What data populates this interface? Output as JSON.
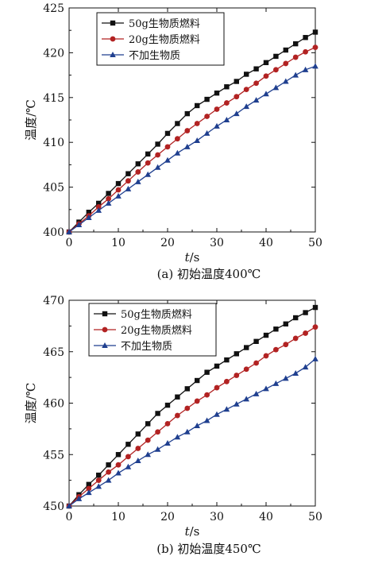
{
  "chart_data": [
    {
      "type": "line",
      "caption": "(a) 初始温度400℃",
      "ylabel": "温度/℃",
      "xlabel_italic": "t",
      "xlabel_rest": "/s",
      "xlim": [
        0,
        50
      ],
      "ylim": [
        400,
        425
      ],
      "xticks": [
        0,
        10,
        20,
        30,
        40,
        50
      ],
      "yticks": [
        400,
        405,
        410,
        415,
        420,
        425
      ],
      "legend_position": "top-left",
      "x": [
        0,
        2,
        4,
        6,
        8,
        10,
        12,
        14,
        16,
        18,
        20,
        22,
        24,
        26,
        28,
        30,
        32,
        34,
        36,
        38,
        40,
        42,
        44,
        46,
        48,
        50
      ],
      "series": [
        {
          "name": "50g生物质燃料",
          "marker": "square",
          "color": "#111111",
          "values": [
            400,
            401.1,
            402.2,
            403.2,
            404.3,
            405.4,
            406.5,
            407.6,
            408.7,
            409.8,
            411.0,
            412.1,
            413.2,
            414.1,
            414.8,
            415.5,
            416.2,
            416.8,
            417.6,
            418.2,
            418.9,
            419.6,
            420.3,
            421.0,
            421.7,
            422.3
          ]
        },
        {
          "name": "20g生物质燃料",
          "marker": "circle",
          "color": "#b22222",
          "values": [
            400,
            400.9,
            401.8,
            402.8,
            403.7,
            404.7,
            405.7,
            406.7,
            407.7,
            408.6,
            409.5,
            410.4,
            411.3,
            412.1,
            412.9,
            413.7,
            414.4,
            415.1,
            415.9,
            416.6,
            417.4,
            418.1,
            418.8,
            419.5,
            420.1,
            420.6
          ]
        },
        {
          "name": "不加生物质",
          "marker": "triangle",
          "color": "#1f3f8f",
          "values": [
            400,
            400.8,
            401.6,
            402.4,
            403.2,
            404.0,
            404.8,
            405.6,
            406.4,
            407.2,
            408.0,
            408.8,
            409.5,
            410.2,
            411.0,
            411.8,
            412.5,
            413.2,
            414.0,
            414.7,
            415.4,
            416.1,
            416.8,
            417.5,
            418.1,
            418.5
          ]
        }
      ]
    },
    {
      "type": "line",
      "caption": "(b) 初始温度450℃",
      "ylabel": "温度/℃",
      "xlabel_italic": "t",
      "xlabel_rest": "/s",
      "xlim": [
        0,
        50
      ],
      "ylim": [
        450,
        470
      ],
      "xticks": [
        0,
        10,
        20,
        30,
        40,
        50
      ],
      "yticks": [
        450,
        455,
        460,
        465,
        470
      ],
      "legend_position": "top-left",
      "x": [
        0,
        2,
        4,
        6,
        8,
        10,
        12,
        14,
        16,
        18,
        20,
        22,
        24,
        26,
        28,
        30,
        32,
        34,
        36,
        38,
        40,
        42,
        44,
        46,
        48,
        50
      ],
      "series": [
        {
          "name": "50g生物质燃料",
          "marker": "square",
          "color": "#111111",
          "values": [
            450,
            451.1,
            452.1,
            453.0,
            454.0,
            455.0,
            456.0,
            457.0,
            458.0,
            459.0,
            459.8,
            460.6,
            461.4,
            462.2,
            463.0,
            463.6,
            464.2,
            464.8,
            465.4,
            466.0,
            466.6,
            467.2,
            467.7,
            468.3,
            468.8,
            469.3
          ]
        },
        {
          "name": "20g生物质燃料",
          "marker": "circle",
          "color": "#b22222",
          "values": [
            450,
            450.9,
            451.7,
            452.5,
            453.3,
            454.0,
            454.8,
            455.6,
            456.4,
            457.2,
            458.0,
            458.8,
            459.5,
            460.2,
            460.8,
            461.5,
            462.1,
            462.7,
            463.3,
            463.9,
            464.6,
            465.2,
            465.7,
            466.3,
            466.8,
            467.4
          ]
        },
        {
          "name": "不加生物质",
          "marker": "triangle",
          "color": "#1f3f8f",
          "values": [
            450,
            450.7,
            451.3,
            451.9,
            452.5,
            453.2,
            453.8,
            454.4,
            455.0,
            455.5,
            456.1,
            456.7,
            457.2,
            457.8,
            458.3,
            458.9,
            459.4,
            459.9,
            460.4,
            460.9,
            461.4,
            461.9,
            462.4,
            462.9,
            463.5,
            464.3
          ]
        }
      ]
    }
  ]
}
